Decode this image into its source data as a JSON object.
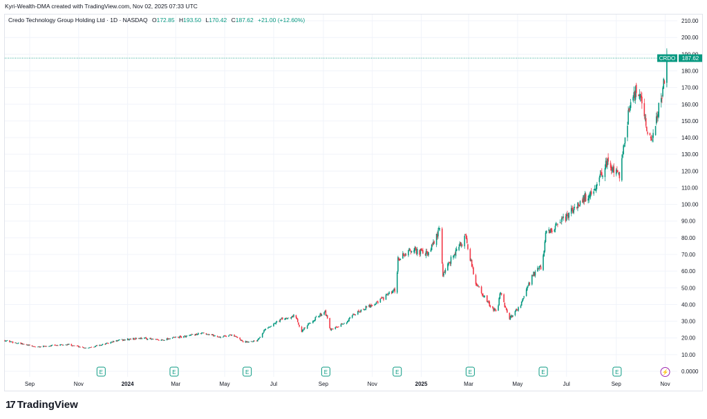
{
  "header": {
    "attribution": "Kyri-Wealth-DMA created with TradingView.com, Nov 02, 2025 07:33 UTC"
  },
  "legend": {
    "instrument": "Credo Technology Group Holding Ltd · 1D · NASDAQ",
    "o_label": "O",
    "o_value": "172.85",
    "h_label": "H",
    "h_value": "193.50",
    "l_label": "L",
    "l_value": "170.42",
    "c_label": "C",
    "c_value": "187.62",
    "change": "+21.00 (+12.60%)"
  },
  "price_tag": {
    "symbol": "CRDO",
    "price": "187.62"
  },
  "footer": {
    "logo_mark": "17",
    "logo_text": "TradingView"
  },
  "colors": {
    "up": "#089981",
    "down": "#f23645",
    "grid": "#f0f3fa",
    "axis_text": "#131722",
    "earnings": "#089981",
    "dividend": "#9c27b0"
  },
  "chart_data": {
    "type": "candlestick",
    "title": "Credo Technology Group Holding Ltd · 1D · NASDAQ",
    "ylim": [
      0,
      212.5
    ],
    "y_ticks": [
      "0.0000",
      "10.00",
      "20.00",
      "30.00",
      "40.00",
      "50.00",
      "60.00",
      "70.00",
      "80.00",
      "90.00",
      "100.00",
      "110.00",
      "120.00",
      "130.00",
      "140.00",
      "150.00",
      "160.00",
      "170.00",
      "180.00",
      "190.00",
      "200.00",
      "210.00"
    ],
    "x_ticks": [
      {
        "label": "Sep",
        "date": "2023-09-01",
        "bold": false
      },
      {
        "label": "Nov",
        "date": "2023-11-01",
        "bold": false
      },
      {
        "label": "2024",
        "date": "2024-01-01",
        "bold": true
      },
      {
        "label": "Mar",
        "date": "2024-03-01",
        "bold": false
      },
      {
        "label": "May",
        "date": "2024-05-01",
        "bold": false
      },
      {
        "label": "Jul",
        "date": "2024-07-01",
        "bold": false
      },
      {
        "label": "Sep",
        "date": "2024-09-01",
        "bold": false
      },
      {
        "label": "Nov",
        "date": "2024-11-01",
        "bold": false
      },
      {
        "label": "2025",
        "date": "2025-01-01",
        "bold": true
      },
      {
        "label": "Mar",
        "date": "2025-03-01",
        "bold": false
      },
      {
        "label": "May",
        "date": "2025-05-01",
        "bold": false
      },
      {
        "label": "Jul",
        "date": "2025-07-01",
        "bold": false
      },
      {
        "label": "Sep",
        "date": "2025-09-01",
        "bold": false
      },
      {
        "label": "Nov",
        "date": "2025-11-01",
        "bold": false
      }
    ],
    "date_range": [
      "2023-08-01",
      "2025-11-04"
    ],
    "last_price": 187.62,
    "events": [
      {
        "type": "earnings",
        "label": "E",
        "date": "2023-11-29"
      },
      {
        "type": "earnings",
        "label": "E",
        "date": "2024-02-28"
      },
      {
        "type": "earnings",
        "label": "E",
        "date": "2024-05-29"
      },
      {
        "type": "earnings",
        "label": "E",
        "date": "2024-09-04"
      },
      {
        "type": "earnings",
        "label": "E",
        "date": "2024-12-02"
      },
      {
        "type": "earnings",
        "label": "E",
        "date": "2025-03-03"
      },
      {
        "type": "earnings",
        "label": "E",
        "date": "2025-06-02"
      },
      {
        "type": "earnings",
        "label": "E",
        "date": "2025-09-02"
      },
      {
        "type": "dividend",
        "label": "⚡",
        "date": "2025-11-01"
      }
    ],
    "price_path": [
      [
        "2023-08-01",
        18.5
      ],
      [
        "2023-08-20",
        16.5
      ],
      [
        "2023-09-10",
        14.5
      ],
      [
        "2023-10-01",
        15.5
      ],
      [
        "2023-10-20",
        16.0
      ],
      [
        "2023-11-10",
        14.0
      ],
      [
        "2023-12-01",
        16.0
      ],
      [
        "2023-12-20",
        18.5
      ],
      [
        "2024-01-20",
        20.0
      ],
      [
        "2024-02-10",
        18.5
      ],
      [
        "2024-02-25",
        20.0
      ],
      [
        "2024-03-15",
        21.0
      ],
      [
        "2024-04-05",
        23.0
      ],
      [
        "2024-04-25",
        20.5
      ],
      [
        "2024-05-10",
        22.0
      ],
      [
        "2024-05-25",
        17.5
      ],
      [
        "2024-06-10",
        18.5
      ],
      [
        "2024-06-20",
        25.0
      ],
      [
        "2024-07-10",
        31.0
      ],
      [
        "2024-07-28",
        33.5
      ],
      [
        "2024-08-05",
        24.0
      ],
      [
        "2024-08-20",
        31.0
      ],
      [
        "2024-09-03",
        36.0
      ],
      [
        "2024-09-10",
        24.5
      ],
      [
        "2024-09-25",
        28.0
      ],
      [
        "2024-10-15",
        36.0
      ],
      [
        "2024-11-05",
        41.0
      ],
      [
        "2024-11-28",
        48.0
      ],
      [
        "2024-12-01",
        49.0
      ],
      [
        "2024-12-03",
        67.0
      ],
      [
        "2024-12-20",
        73.0
      ],
      [
        "2025-01-10",
        70.0
      ],
      [
        "2025-01-24",
        85.0
      ],
      [
        "2025-01-28",
        58.0
      ],
      [
        "2025-02-10",
        70.0
      ],
      [
        "2025-02-25",
        80.0
      ],
      [
        "2025-03-10",
        53.0
      ],
      [
        "2025-03-25",
        41.0
      ],
      [
        "2025-04-05",
        35.0
      ],
      [
        "2025-04-10",
        48.0
      ],
      [
        "2025-04-20",
        31.0
      ],
      [
        "2025-05-05",
        40.0
      ],
      [
        "2025-05-20",
        58.0
      ],
      [
        "2025-06-01",
        63.0
      ],
      [
        "2025-06-05",
        82.0
      ],
      [
        "2025-06-20",
        87.0
      ],
      [
        "2025-07-10",
        97.0
      ],
      [
        "2025-07-20",
        103.0
      ],
      [
        "2025-08-05",
        107.0
      ],
      [
        "2025-08-20",
        125.0
      ],
      [
        "2025-09-05",
        118.0
      ],
      [
        "2025-09-12",
        142.0
      ],
      [
        "2025-09-20",
        165.0
      ],
      [
        "2025-09-30",
        167.0
      ],
      [
        "2025-10-08",
        150.0
      ],
      [
        "2025-10-15",
        135.0
      ],
      [
        "2025-10-22",
        155.0
      ],
      [
        "2025-10-28",
        165.0
      ],
      [
        "2025-11-03",
        187.62
      ]
    ]
  }
}
